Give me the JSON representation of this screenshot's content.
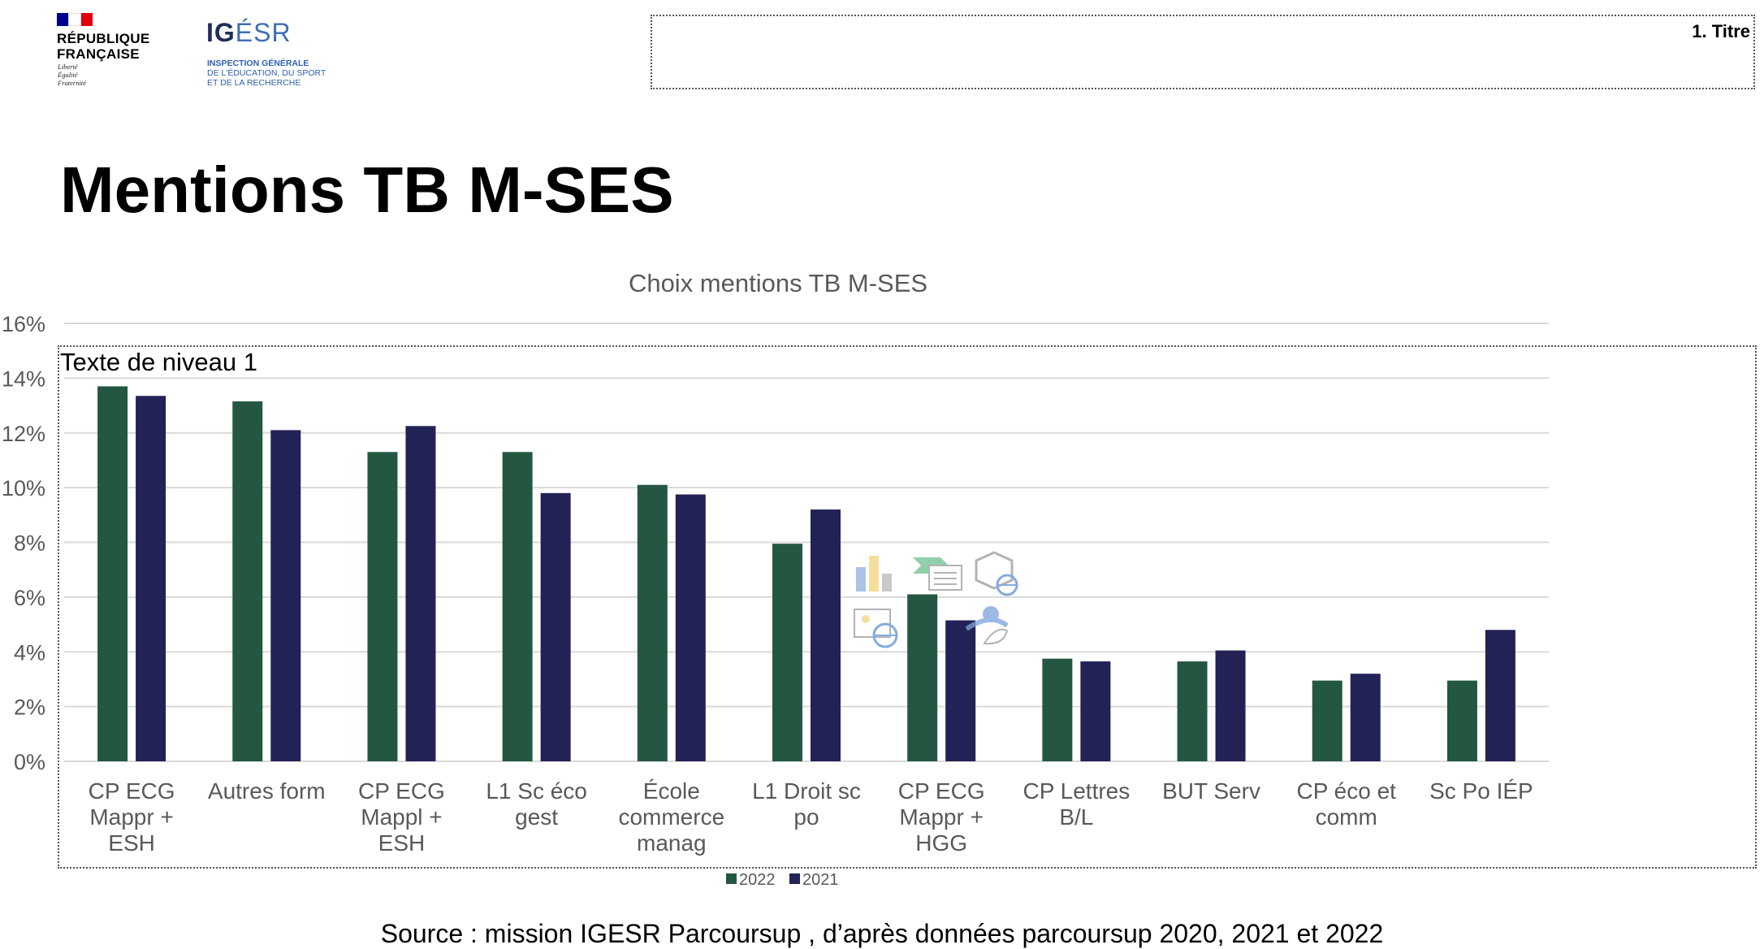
{
  "logos": {
    "republique": {
      "name": "RÉPUBLIQUE\nFRANÇAISE",
      "motto": "Liberté\nÉgalité\nFraternité",
      "flag_colors": [
        "#000091",
        "#ffffff",
        "#e1000f"
      ]
    },
    "igesr": {
      "word_bold": "IG",
      "word_light": "ÉSR",
      "subtitle_bold": "INSPECTION GÉNÉRALE",
      "subtitle_rest": "DE L'ÉDUCATION, DU SPORT\nET DE LA RECHERCHE"
    }
  },
  "title_placeholder": "1. Titre",
  "slide_title": "Mentions TB M-SES",
  "content_placeholder": "Texte de niveau 1",
  "source": "Source : mission IGESR Parcoursup , d’après données parcoursup 2020, 2021 et 2022",
  "chart_data": {
    "type": "bar",
    "title": "Choix mentions TB M-SES",
    "xlabel": "",
    "ylabel": "",
    "ylim": [
      0,
      16
    ],
    "yticks": [
      "0%",
      "2%",
      "4%",
      "6%",
      "8%",
      "10%",
      "12%",
      "14%",
      "16%"
    ],
    "categories": [
      "CP ECG Mappr + ESH",
      "Autres form",
      "CP ECG Mappl + ESH",
      "L1 Sc éco gest",
      "École commerce manag",
      "L1 Droit sc po",
      "CP ECG Mappr + HGG",
      "CP Lettres B/L",
      "BUT Serv",
      "CP éco et comm",
      "Sc Po IÉP"
    ],
    "category_lines": [
      [
        "CP ECG",
        "Mappr +",
        "ESH"
      ],
      [
        "Autres form"
      ],
      [
        "CP ECG",
        "Mappl +",
        "ESH"
      ],
      [
        "L1 Sc éco",
        "gest"
      ],
      [
        "École",
        "commerce",
        "manag"
      ],
      [
        "L1 Droit sc",
        "po"
      ],
      [
        "CP ECG",
        "Mappr +",
        "HGG"
      ],
      [
        "CP Lettres",
        "B/L"
      ],
      [
        "BUT Serv"
      ],
      [
        "CP éco et",
        "comm"
      ],
      [
        "Sc Po IÉP"
      ]
    ],
    "series": [
      {
        "name": "2022",
        "color": "#245741",
        "values": [
          13.7,
          13.15,
          11.3,
          11.3,
          10.1,
          7.95,
          6.1,
          3.75,
          3.65,
          2.95,
          2.95
        ]
      },
      {
        "name": "2021",
        "color": "#222256",
        "values": [
          13.35,
          12.1,
          12.25,
          9.8,
          9.75,
          9.2,
          5.15,
          3.65,
          4.05,
          3.2,
          4.8
        ]
      }
    ],
    "grid": true,
    "legend_position": "bottom"
  }
}
